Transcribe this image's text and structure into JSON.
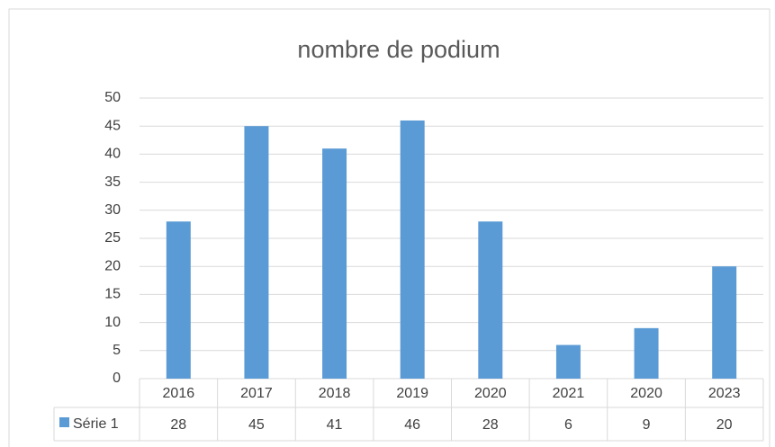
{
  "chart_data": {
    "type": "bar",
    "title": "nombre de podium",
    "categories": [
      "2016",
      "2017",
      "2018",
      "2019",
      "2020",
      "2021",
      "2020",
      "2023"
    ],
    "series": [
      {
        "name": "Série 1",
        "color": "#5b9bd5",
        "values": [
          28,
          45,
          41,
          46,
          28,
          6,
          9,
          20
        ]
      }
    ],
    "ylim": [
      0,
      50
    ],
    "yticks": [
      0,
      5,
      10,
      15,
      20,
      25,
      30,
      35,
      40,
      45,
      50
    ],
    "grid": true,
    "data_table": true
  }
}
